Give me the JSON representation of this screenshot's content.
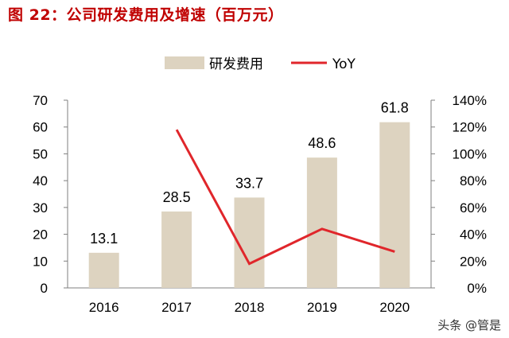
{
  "title": "图 22：公司研发费用及增速（百万元）",
  "watermark": "头条 @管是",
  "colors": {
    "bar": "#ddd3c0",
    "line": "#e0262b",
    "title": "#c00000",
    "axis": "#7f7f7f"
  },
  "chart_data": {
    "type": "bar",
    "categories": [
      "2016",
      "2017",
      "2018",
      "2019",
      "2020"
    ],
    "series": [
      {
        "name": "研发费用",
        "type": "bar",
        "axis": "left",
        "values": [
          13.1,
          28.5,
          33.7,
          48.6,
          61.8
        ]
      },
      {
        "name": "YoY",
        "type": "line",
        "axis": "right",
        "values": [
          null,
          1.18,
          0.18,
          0.44,
          0.27
        ]
      }
    ],
    "data_labels": [
      "13.1",
      "28.5",
      "33.7",
      "48.6",
      "61.8"
    ],
    "y_left": {
      "range": [
        0,
        70
      ],
      "ticks": [
        "0",
        "10",
        "20",
        "30",
        "40",
        "50",
        "60",
        "70"
      ]
    },
    "y_right": {
      "range": [
        0,
        1.4
      ],
      "ticks": [
        "0%",
        "20%",
        "40%",
        "60%",
        "80%",
        "100%",
        "120%",
        "140%"
      ]
    },
    "legend": {
      "position": "top",
      "items": [
        "研发费用",
        "YoY"
      ]
    },
    "grid": false
  }
}
